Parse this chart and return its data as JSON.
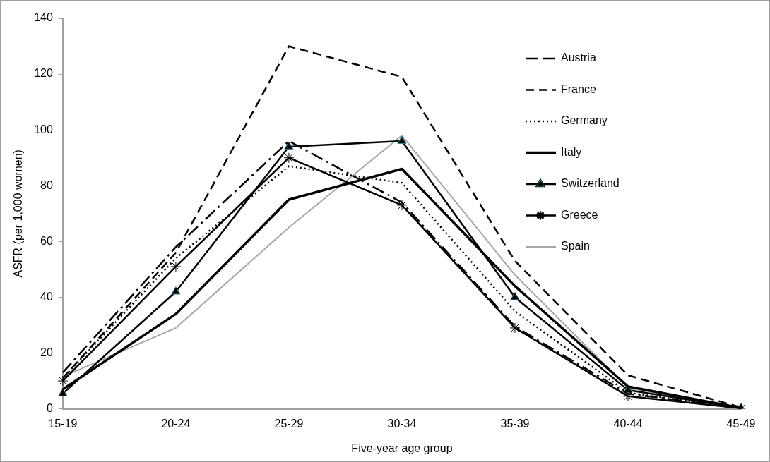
{
  "chart_data": {
    "type": "line",
    "xlabel": "Five-year age group",
    "ylabel": "ASFR (per 1,000 women)",
    "categories": [
      "15-19",
      "20-24",
      "25-29",
      "30-34",
      "35-39",
      "40-44",
      "45-49"
    ],
    "ylim": [
      0,
      140
    ],
    "yticks": [
      0,
      20,
      40,
      60,
      80,
      100,
      120,
      140
    ],
    "grid": false,
    "legend": "top right",
    "series": [
      {
        "name": "Austria",
        "color": "#000000",
        "line_style": "dashdot",
        "marker": "none",
        "values": [
          13,
          58,
          96,
          74,
          29.5,
          5.4,
          0.2
        ]
      },
      {
        "name": "France",
        "color": "#000000",
        "line_style": "dashed",
        "marker": "none",
        "values": [
          11,
          56,
          130,
          119,
          53,
          12,
          0.5
        ]
      },
      {
        "name": "Germany",
        "color": "#000000",
        "line_style": "dotted",
        "marker": "none",
        "values": [
          11,
          54,
          87,
          81,
          35,
          5.8,
          0.2
        ]
      },
      {
        "name": "Italy",
        "color": "#000000",
        "line_style": "solid",
        "marker": "none",
        "values": [
          7,
          34,
          75,
          86,
          44,
          8,
          0.3
        ]
      },
      {
        "name": "Switzerland",
        "color": "#000000",
        "line_style": "solid",
        "marker": "triangle",
        "values": [
          5.5,
          42,
          94,
          96,
          40,
          6.7,
          0.3
        ]
      },
      {
        "name": "Greece",
        "color": "#000000",
        "line_style": "solid",
        "marker": "cross",
        "values": [
          10,
          51,
          90,
          73,
          29,
          4.5,
          0.2
        ]
      },
      {
        "name": "Spain",
        "color": "#a6a6a6",
        "line_style": "solid",
        "marker": "none",
        "values": [
          11.5,
          29,
          65,
          98,
          48,
          7.5,
          0.3
        ]
      }
    ]
  }
}
